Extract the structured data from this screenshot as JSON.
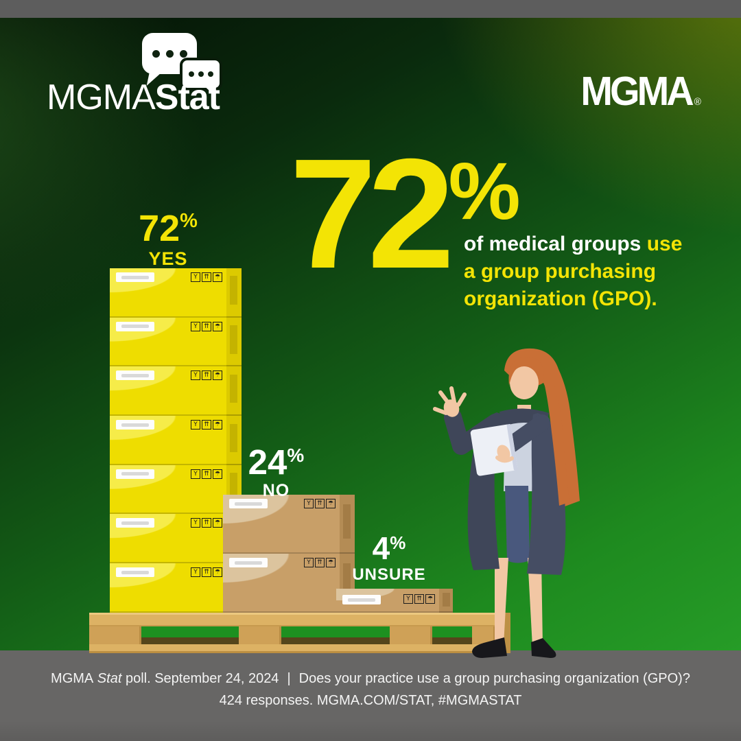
{
  "brand": {
    "stat_logo": {
      "mgma": "MGMA",
      "stat": "Stat"
    },
    "corner_logo": {
      "text": "MGMA",
      "registered": "®"
    }
  },
  "headline": {
    "value": "72",
    "unit": "%",
    "desc_white": "of medical groups",
    "desc_inline_yellow": "use",
    "desc_line2": "a group purchasing",
    "desc_line3": "organization (GPO)."
  },
  "chart_data": {
    "type": "bar",
    "title": "72% of medical groups use a group purchasing organization (GPO).",
    "unit": "%",
    "categories": [
      "YES",
      "NO",
      "UNSURE"
    ],
    "values": [
      72,
      24,
      4
    ],
    "stacks": [
      {
        "answer": "YES",
        "value": "72",
        "unit": "%",
        "boxes": 7,
        "style": "yellow"
      },
      {
        "answer": "NO",
        "value": "24",
        "unit": "%",
        "boxes": 2,
        "style": "cardboard"
      },
      {
        "answer": "UNSURE",
        "value": "4",
        "unit": "%",
        "boxes": 1,
        "style": "cardboard-small"
      }
    ],
    "source": "MGMA Stat poll. September 24, 2024",
    "question": "Does your practice use a group purchasing organization (GPO)?",
    "responses": 424,
    "legend_position": "above-bars",
    "grid": false
  },
  "box_icons": [
    {
      "name": "fragile-icon",
      "glyph": "Y"
    },
    {
      "name": "this-way-up-icon",
      "glyph": "⇈"
    },
    {
      "name": "keep-dry-icon",
      "glyph": "☂"
    }
  ],
  "footer": {
    "brand": "MGMA",
    "brand_italic": " Stat",
    "line1_rest": " poll. September 24, 2024",
    "divider": "|",
    "question": "Does your practice use a group purchasing organization (GPO)?",
    "line2": "424 responses. MGMA.COM/STAT, #MGMASTAT"
  },
  "colors": {
    "accent_yellow": "#f3e405",
    "box_yellow": "#eedd00",
    "box_cardboard": "#c89f68",
    "green_mid": "#176e17",
    "green_bright": "#2aa52b",
    "gray_band": "#676665"
  }
}
